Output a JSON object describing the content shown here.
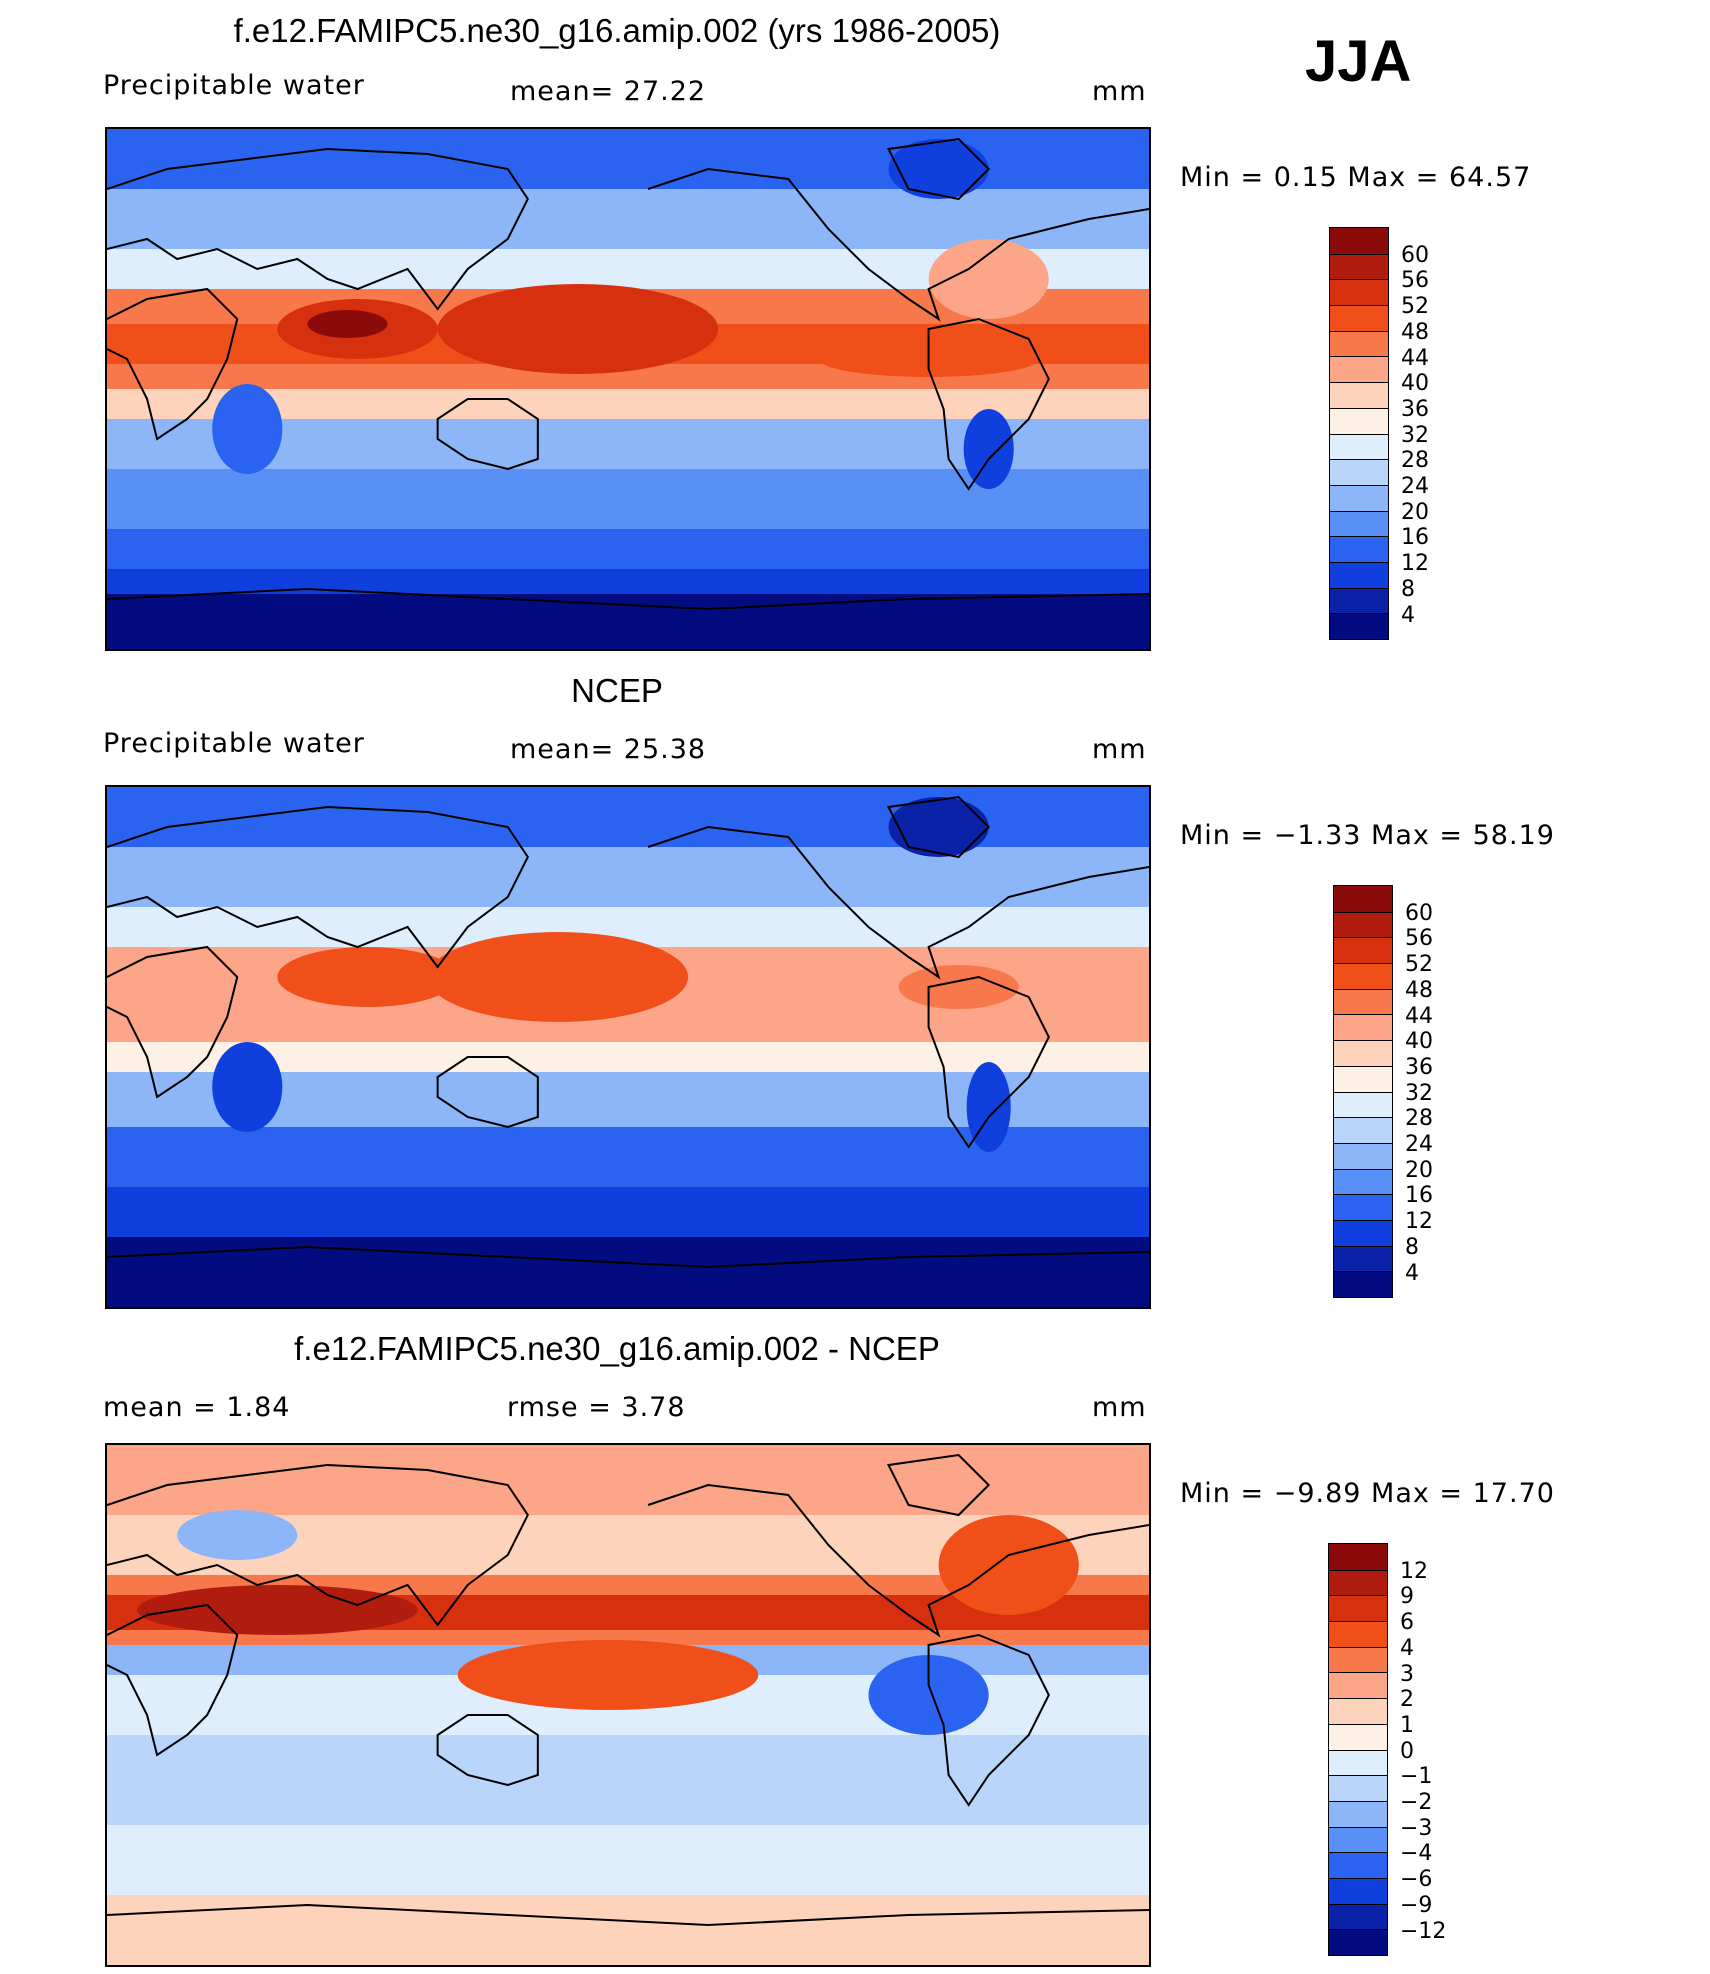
{
  "season": "JJA",
  "panels": [
    {
      "title": "f.e12.FAMIPC5.ne30_g16.amip.002 (yrs 1986-2005)",
      "left_label": "Precipitable  water",
      "center_label": "mean=   27.22",
      "units": "mm",
      "minmax": "Min =    0.15  Max =    64.57",
      "colorbar": {
        "colors": [
          "#8b0a0a",
          "#b01c0e",
          "#d7300f",
          "#f04f1a",
          "#f7784a",
          "#fca588",
          "#fdd3bb",
          "#fdf0e4",
          "#dfeefc",
          "#b9d6fa",
          "#8cb6f7",
          "#5890f5",
          "#2a63ef",
          "#0f3fdd",
          "#0a22a8",
          "#020c80"
        ],
        "ticks": [
          "60",
          "56",
          "52",
          "48",
          "44",
          "40",
          "36",
          "32",
          "28",
          "24",
          "20",
          "16",
          "12",
          "8",
          "4"
        ]
      }
    },
    {
      "title": "NCEP",
      "left_label": "Precipitable  water",
      "center_label": "mean=   25.38",
      "units": "mm",
      "minmax": "Min =   −1.33  Max =    58.19",
      "colorbar": {
        "colors": [
          "#8b0a0a",
          "#b01c0e",
          "#d7300f",
          "#f04f1a",
          "#f7784a",
          "#fca588",
          "#fdd3bb",
          "#fdf0e4",
          "#dfeefc",
          "#b9d6fa",
          "#8cb6f7",
          "#5890f5",
          "#2a63ef",
          "#0f3fdd",
          "#0a22a8",
          "#020c80"
        ],
        "ticks": [
          "60",
          "56",
          "52",
          "48",
          "44",
          "40",
          "36",
          "32",
          "28",
          "24",
          "20",
          "16",
          "12",
          "8",
          "4"
        ]
      }
    },
    {
      "title": "f.e12.FAMIPC5.ne30_g16.amip.002 - NCEP",
      "left_label": "mean  =      1.84",
      "center_label": "rmse  =      3.78",
      "units": "mm",
      "minmax": "Min =   −9.89  Max =    17.70",
      "colorbar": {
        "colors": [
          "#8b0a0a",
          "#b01c0e",
          "#d7300f",
          "#f04f1a",
          "#f7784a",
          "#fca588",
          "#fdd3bb",
          "#fdf0e4",
          "#dfeefc",
          "#b9d6fa",
          "#8cb6f7",
          "#5890f5",
          "#2a63ef",
          "#0f3fdd",
          "#0a22a8",
          "#020c80"
        ],
        "ticks": [
          "12",
          "9",
          "6",
          "4",
          "3",
          "2",
          "1",
          "0",
          "−1",
          "−2",
          "−3",
          "−4",
          "−6",
          "−9",
          "−12"
        ]
      }
    }
  ]
}
